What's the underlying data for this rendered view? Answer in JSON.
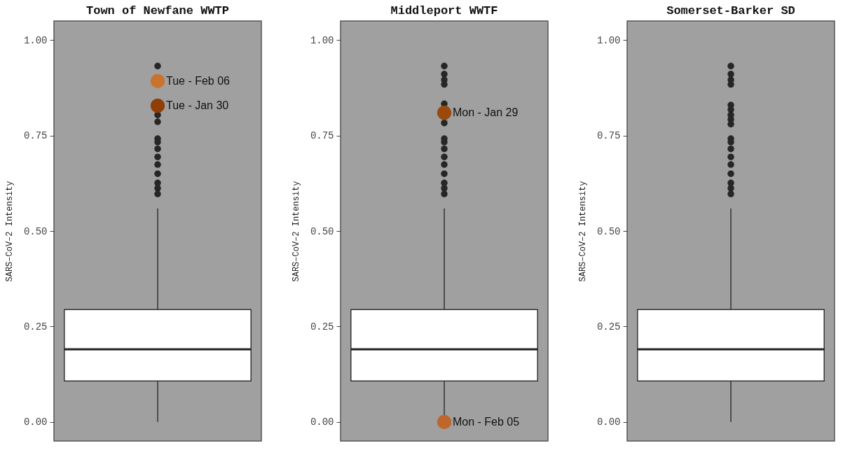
{
  "chart_data": [
    {
      "type": "box",
      "title": "Town of Newfane WWTP",
      "ylabel": "SARS–CoV–2 Intensity",
      "categories": [
        null
      ],
      "ylim": [
        -0.05,
        1.05
      ],
      "yticks": [
        {
          "value": 0,
          "label": "0.00"
        },
        {
          "value": 0.25,
          "label": "0.25"
        },
        {
          "value": 0.5,
          "label": "0.50"
        },
        {
          "value": 0.75,
          "label": "0.75"
        },
        {
          "value": 1,
          "label": "1.00"
        }
      ],
      "grid": false,
      "color": "#262626",
      "boxes": [
        {
          "low": 0,
          "q1": 0.107,
          "median": 0.19,
          "q3": 0.294,
          "high": 0.559,
          "outliers": [
            0.932,
            0.804,
            0.786,
            0.742,
            0.733,
            0.715,
            0.694,
            0.674,
            0.65,
            0.626,
            0.612,
            0.597
          ]
        }
      ],
      "series": [
        {
          "type": "scatter",
          "x": [
            null,
            null
          ],
          "values": [
            0.893,
            0.828
          ],
          "colors": [
            "#c8742e",
            "#8f3f06"
          ]
        }
      ],
      "annotations": [
        "Tue - Feb 06",
        "Tue - Jan 30"
      ]
    },
    {
      "type": "box",
      "title": "Middleport WWTF",
      "ylabel": "SARS–CoV–2 Intensity",
      "categories": [
        null
      ],
      "ylim": [
        -0.05,
        1.05
      ],
      "yticks": [
        {
          "value": 0,
          "label": "0.00"
        },
        {
          "value": 0.25,
          "label": "0.25"
        },
        {
          "value": 0.5,
          "label": "0.50"
        },
        {
          "value": 0.75,
          "label": "0.75"
        },
        {
          "value": 1,
          "label": "1.00"
        }
      ],
      "grid": false,
      "color": "#262626",
      "boxes": [
        {
          "low": 0,
          "q1": 0.107,
          "median": 0.19,
          "q3": 0.294,
          "high": 0.559,
          "outliers": [
            0.932,
            0.911,
            0.896,
            0.884,
            0.833,
            0.783,
            0.742,
            0.733,
            0.715,
            0.694,
            0.674,
            0.65,
            0.626,
            0.612,
            0.597
          ]
        }
      ],
      "series": [
        {
          "type": "scatter",
          "x": [
            null,
            null
          ],
          "values": [
            0.81,
            0
          ],
          "colors": [
            "#9a4a0c",
            "#c0662a"
          ]
        }
      ],
      "annotations": [
        "Mon - Jan 29",
        "Mon - Feb 05"
      ]
    },
    {
      "type": "box",
      "title": "Somerset-Barker SD",
      "ylabel": "SARS–CoV–2 Intensity",
      "categories": [
        null
      ],
      "ylim": [
        -0.05,
        1.05
      ],
      "yticks": [
        {
          "value": 0,
          "label": "0.00"
        },
        {
          "value": 0.25,
          "label": "0.25"
        },
        {
          "value": 0.5,
          "label": "0.50"
        },
        {
          "value": 0.75,
          "label": "0.75"
        },
        {
          "value": 1,
          "label": "1.00"
        }
      ],
      "grid": false,
      "color": "#262626",
      "boxes": [
        {
          "low": 0,
          "q1": 0.107,
          "median": 0.19,
          "q3": 0.294,
          "high": 0.559,
          "outliers": [
            0.932,
            0.911,
            0.896,
            0.884,
            0.83,
            0.818,
            0.804,
            0.792,
            0.78,
            0.742,
            0.733,
            0.715,
            0.694,
            0.674,
            0.65,
            0.626,
            0.612,
            0.597
          ]
        }
      ]
    }
  ]
}
